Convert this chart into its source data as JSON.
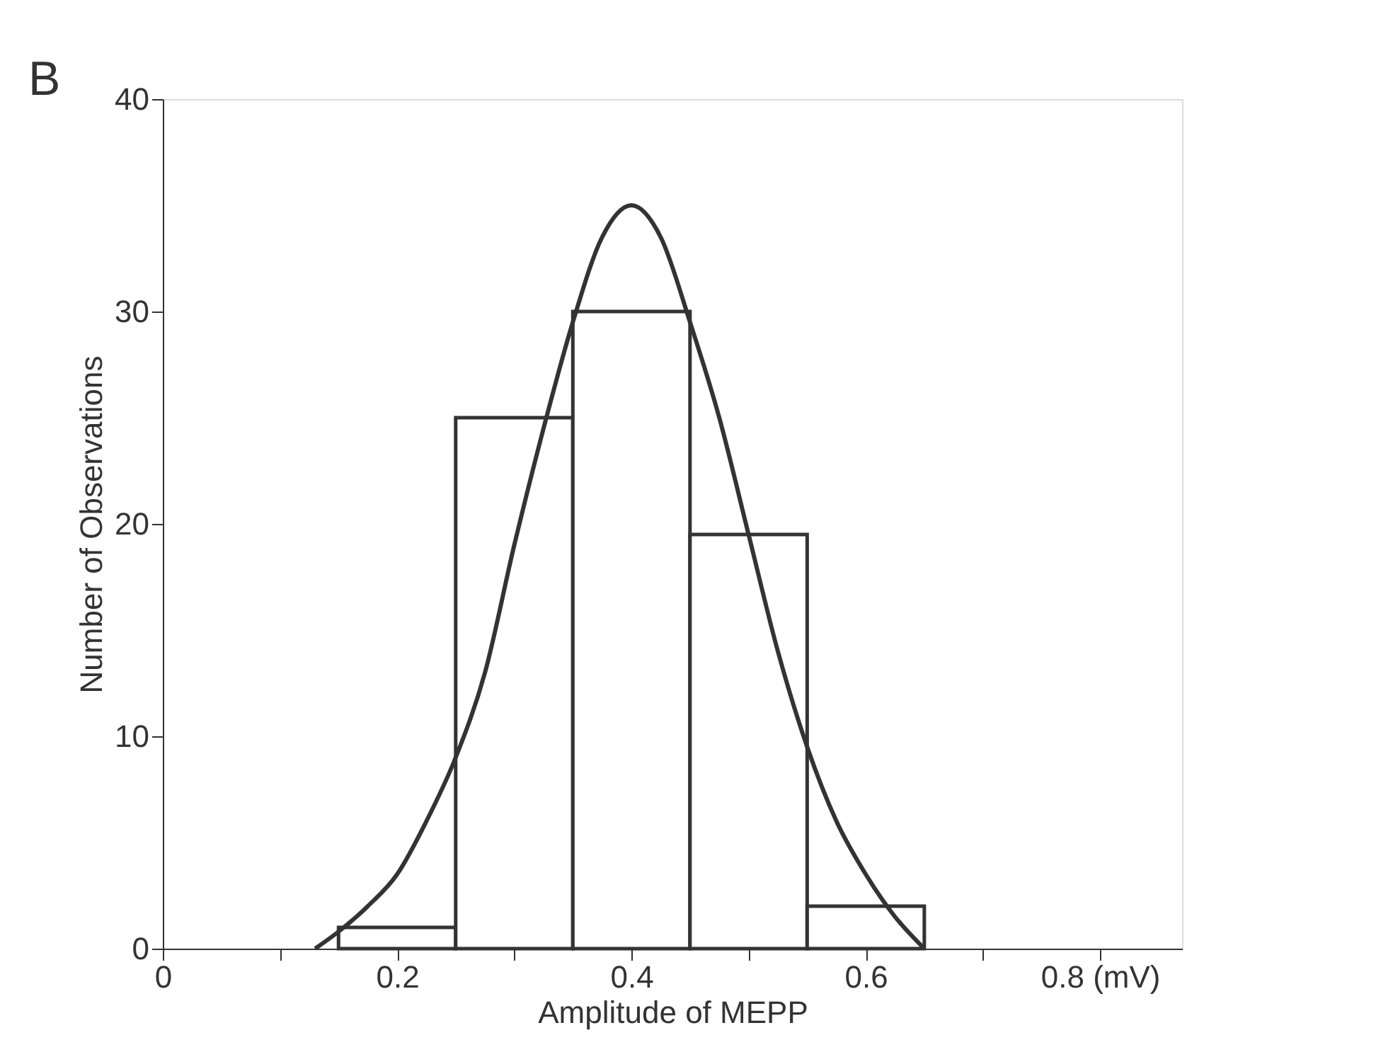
{
  "chart_data": {
    "type": "histogram",
    "xlabel": "Amplitude of MEPP",
    "ylabel": "Number of Observations",
    "annotations": [
      "B"
    ],
    "bins": [
      0.15,
      0.25,
      0.35,
      0.45,
      0.55,
      0.65
    ],
    "values": [
      1,
      25,
      30,
      19.5,
      2
    ],
    "color": "#ffffff",
    "series": [
      {
        "type": "line",
        "color": "#333333",
        "x": [
          0.13,
          0.15,
          0.175,
          0.2,
          0.225,
          0.25,
          0.275,
          0.3,
          0.325,
          0.35,
          0.375,
          0.4,
          0.425,
          0.45,
          0.475,
          0.5,
          0.525,
          0.55,
          0.575,
          0.6,
          0.625,
          0.65
        ],
        "values": [
          0,
          0.8,
          2,
          3.5,
          6,
          9,
          13,
          19,
          24.5,
          29.5,
          33.5,
          35,
          33.5,
          29.5,
          25,
          19.5,
          14,
          9.5,
          6,
          3.5,
          1.5,
          0
        ]
      }
    ],
    "xlim": [
      0,
      0.87
    ],
    "xticks": [
      0,
      {
        "value": 0.1,
        "label": null
      },
      0.2,
      {
        "value": 0.3,
        "label": null
      },
      0.4,
      {
        "value": 0.5,
        "label": null
      },
      0.6,
      {
        "value": 0.7,
        "label": null
      },
      {
        "value": 0.8,
        "label": "0.8 (mV)"
      }
    ],
    "ylim": [
      0,
      40
    ],
    "yticks": [
      0,
      10,
      20,
      30,
      40
    ],
    "grid": false,
    "marker": "none",
    "line_style": "solid"
  }
}
